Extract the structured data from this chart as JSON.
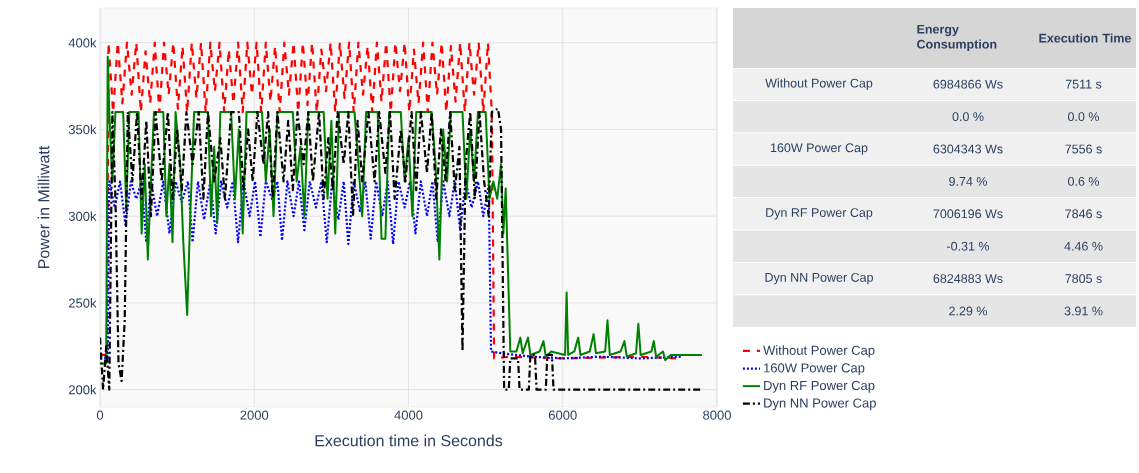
{
  "chart_data": [
    {
      "type": "line",
      "xlabel": "Execution time in Seconds",
      "ylabel": "Power in Milliwatt",
      "xlim": [
        0,
        8000
      ],
      "ylim": [
        190000,
        420000
      ],
      "xticks": [
        0,
        2000,
        4000,
        6000,
        8000
      ],
      "yticks": [
        {
          "value": 200000,
          "label": "200k"
        },
        {
          "value": 250000,
          "label": "250k"
        },
        {
          "value": 300000,
          "label": "300k"
        },
        {
          "value": 350000,
          "label": "350k"
        },
        {
          "value": 400000,
          "label": "400k"
        }
      ],
      "grid": true,
      "legend": "right",
      "series": [
        {
          "name": "Without Power Cap",
          "color": "#ff0000",
          "line_style": "dashed",
          "x": [
            0,
            90,
            110,
            170,
            230,
            290,
            350,
            410,
            470,
            530,
            590,
            650,
            710,
            770,
            830,
            890,
            950,
            1010,
            1070,
            1130,
            1190,
            1250,
            1310,
            1370,
            1430,
            1490,
            1550,
            1610,
            1670,
            1730,
            1790,
            1850,
            1910,
            1970,
            2030,
            2090,
            2150,
            2210,
            2270,
            2330,
            2390,
            2450,
            2510,
            2570,
            2630,
            2690,
            2750,
            2810,
            2870,
            2930,
            2990,
            3050,
            3110,
            3170,
            3230,
            3290,
            3350,
            3410,
            3470,
            3530,
            3590,
            3650,
            3710,
            3770,
            3830,
            3890,
            3950,
            4010,
            4070,
            4130,
            4190,
            4250,
            4310,
            4370,
            4430,
            4490,
            4550,
            4610,
            4670,
            4730,
            4790,
            4850,
            4910,
            4970,
            5030,
            5080,
            5110,
            5300,
            6000,
            7000,
            7500
          ],
          "values": [
            220000,
            220000,
            400000,
            360000,
            400000,
            365000,
            400000,
            370000,
            400000,
            360000,
            395000,
            365000,
            400000,
            360000,
            400000,
            370000,
            400000,
            362000,
            398000,
            360000,
            400000,
            368000,
            400000,
            360000,
            400000,
            372000,
            400000,
            360000,
            396000,
            365000,
            400000,
            360000,
            400000,
            370000,
            400000,
            360000,
            400000,
            366000,
            398000,
            360000,
            400000,
            370000,
            400000,
            360000,
            400000,
            364000,
            400000,
            360000,
            396000,
            372000,
            400000,
            360000,
            400000,
            368000,
            400000,
            360000,
            400000,
            370000,
            398000,
            360000,
            400000,
            366000,
            400000,
            360000,
            400000,
            372000,
            400000,
            360000,
            396000,
            365000,
            400000,
            360000,
            400000,
            370000,
            400000,
            360000,
            398000,
            366000,
            400000,
            360000,
            400000,
            370000,
            400000,
            360000,
            400000,
            360000,
            218000,
            219000,
            218000,
            219000,
            218000
          ]
        },
        {
          "name": "160W Power Cap",
          "color": "#0000ff",
          "line_style": "dotted",
          "x": [
            0,
            100,
            120,
            190,
            260,
            330,
            400,
            470,
            540,
            600,
            660,
            740,
            820,
            900,
            980,
            1060,
            1140,
            1200,
            1270,
            1350,
            1430,
            1500,
            1570,
            1650,
            1720,
            1790,
            1860,
            1940,
            2010,
            2080,
            2150,
            2230,
            2300,
            2360,
            2430,
            2510,
            2580,
            2650,
            2720,
            2800,
            2870,
            2940,
            3010,
            3090,
            3160,
            3220,
            3290,
            3370,
            3440,
            3510,
            3580,
            3660,
            3730,
            3800,
            3870,
            3950,
            4020,
            4090,
            4160,
            4240,
            4310,
            4380,
            4450,
            4530,
            4600,
            4670,
            4740,
            4820,
            4900,
            4970,
            5040,
            5070,
            5200,
            5600,
            6000,
            6500,
            7000,
            7550
          ],
          "values": [
            218000,
            218000,
            320000,
            305000,
            320000,
            295000,
            320000,
            310000,
            320000,
            285000,
            320000,
            300000,
            320000,
            290000,
            320000,
            308000,
            320000,
            285000,
            320000,
            298000,
            320000,
            290000,
            320000,
            305000,
            320000,
            285000,
            320000,
            300000,
            320000,
            288000,
            320000,
            310000,
            320000,
            286000,
            320000,
            300000,
            320000,
            292000,
            320000,
            305000,
            320000,
            285000,
            320000,
            298000,
            320000,
            284000,
            320000,
            303000,
            320000,
            287000,
            320000,
            300000,
            320000,
            284000,
            320000,
            305000,
            320000,
            290000,
            320000,
            300000,
            320000,
            285000,
            320000,
            300000,
            320000,
            292000,
            320000,
            305000,
            320000,
            300000,
            318000,
            222000,
            221000,
            219000,
            218000,
            219000,
            218000,
            219000
          ]
        },
        {
          "name": "Dyn RF Power Cap",
          "color": "#008000",
          "line_style": "solid",
          "x": [
            0,
            80,
            100,
            120,
            160,
            200,
            300,
            340,
            380,
            500,
            540,
            580,
            620,
            660,
            700,
            820,
            860,
            900,
            940,
            980,
            1040,
            1080,
            1130,
            1170,
            1220,
            1400,
            1440,
            1480,
            1520,
            1560,
            1700,
            1750,
            1800,
            1850,
            1900,
            2100,
            2150,
            2200,
            2250,
            2300,
            2500,
            2550,
            2600,
            2650,
            2700,
            2900,
            2950,
            3000,
            3050,
            3100,
            3300,
            3350,
            3400,
            3450,
            3600,
            3650,
            3700,
            3750,
            3900,
            3950,
            4000,
            4050,
            4100,
            4300,
            4350,
            4400,
            4450,
            4500,
            4550,
            4700,
            4750,
            4800,
            4850,
            4900,
            5000,
            5050,
            5100,
            5150,
            5200,
            5230,
            5260,
            5320,
            5400,
            5450,
            5480,
            5550,
            5580,
            5700,
            5750,
            5780,
            5850,
            6030,
            6050,
            6070,
            6150,
            6200,
            6230,
            6350,
            6400,
            6430,
            6550,
            6580,
            6610,
            6750,
            6800,
            6830,
            6950,
            6980,
            7010,
            7150,
            7180,
            7210,
            7300,
            7330,
            7400,
            7805
          ],
          "values": [
            215000,
            215000,
            392000,
            360000,
            320000,
            360000,
            360000,
            305000,
            360000,
            360000,
            290000,
            330000,
            275000,
            320000,
            360000,
            360000,
            300000,
            330000,
            285000,
            360000,
            330000,
            285000,
            243000,
            300000,
            360000,
            360000,
            300000,
            340000,
            296000,
            360000,
            360000,
            310000,
            350000,
            290000,
            360000,
            360000,
            320000,
            350000,
            300000,
            360000,
            360000,
            320000,
            340000,
            300000,
            360000,
            360000,
            310000,
            355000,
            290000,
            360000,
            360000,
            330000,
            300000,
            360000,
            360000,
            287000,
            287000,
            360000,
            360000,
            320000,
            345000,
            300000,
            360000,
            360000,
            330000,
            275000,
            350000,
            320000,
            360000,
            360000,
            310000,
            350000,
            320000,
            360000,
            360000,
            310000,
            320000,
            310000,
            330000,
            290000,
            316000,
            222000,
            222000,
            230000,
            221000,
            230000,
            220000,
            222000,
            228000,
            219000,
            222000,
            220000,
            256000,
            220000,
            222000,
            230000,
            220000,
            222000,
            232000,
            221000,
            222000,
            240000,
            220000,
            222000,
            228000,
            219000,
            221000,
            238000,
            220000,
            222000,
            228000,
            219000,
            222000,
            217000,
            220000,
            220000
          ]
        },
        {
          "name": "Dyn NN Power Cap",
          "color": "#000000",
          "line_style": "dashdot",
          "x": [
            0,
            40,
            80,
            120,
            160,
            200,
            240,
            280,
            320,
            360,
            420,
            480,
            540,
            600,
            660,
            720,
            800,
            880,
            940,
            1000,
            1060,
            1120,
            1200,
            1280,
            1340,
            1400,
            1480,
            1560,
            1620,
            1700,
            1800,
            1860,
            1920,
            1980,
            2040,
            2120,
            2180,
            2240,
            2300,
            2380,
            2440,
            2500,
            2560,
            2640,
            2700,
            2760,
            2840,
            2900,
            2960,
            3020,
            3080,
            3160,
            3220,
            3280,
            3340,
            3400,
            3480,
            3560,
            3620,
            3700,
            3760,
            3820,
            3900,
            3960,
            4040,
            4100,
            4160,
            4240,
            4300,
            4360,
            4420,
            4480,
            4540,
            4600,
            4660,
            4700,
            4740,
            4800,
            4860,
            4920,
            4980,
            5040,
            5080,
            5160,
            5200,
            5240,
            5300,
            5320,
            5420,
            5440,
            5560,
            5580,
            5640,
            5660,
            5780,
            5800,
            5860,
            5880,
            7805
          ],
          "values": [
            230000,
            200000,
            225000,
            200000,
            360000,
            310000,
            215000,
            205000,
            240000,
            360000,
            320000,
            360000,
            310000,
            355000,
            300000,
            360000,
            320000,
            360000,
            310000,
            350000,
            315000,
            360000,
            330000,
            360000,
            310000,
            360000,
            320000,
            345000,
            310000,
            360000,
            360000,
            315000,
            350000,
            320000,
            360000,
            330000,
            360000,
            310000,
            360000,
            320000,
            355000,
            315000,
            360000,
            330000,
            360000,
            320000,
            360000,
            310000,
            345000,
            315000,
            360000,
            330000,
            360000,
            300000,
            355000,
            320000,
            360000,
            320000,
            360000,
            325000,
            360000,
            310000,
            350000,
            320000,
            360000,
            315000,
            360000,
            325000,
            360000,
            310000,
            350000,
            320000,
            360000,
            315000,
            340000,
            222000,
            330000,
            360000,
            310000,
            360000,
            320000,
            300000,
            360000,
            362000,
            350000,
            200000,
            200000,
            218000,
            218000,
            200000,
            200000,
            220000,
            220000,
            200000,
            200000,
            220000,
            220000,
            200000,
            200000
          ]
        }
      ]
    },
    {
      "type": "other",
      "annotations": [
        "Energy Consumption",
        "Execution Time",
        "Without Power Cap",
        "6984866 Ws",
        "7511 s",
        "0.0 %",
        "0.0 %",
        "160W Power Cap",
        "6304343 Ws",
        "7556 s",
        "9.74 %",
        "0.6 %",
        "Dyn RF Power Cap",
        "7006196 Ws",
        "7846 s",
        "-0.31 %",
        "4.46 %",
        "Dyn NN Power Cap",
        "6824883 Ws",
        "7805 s",
        "2.29 %",
        "3.91 %"
      ]
    }
  ]
}
